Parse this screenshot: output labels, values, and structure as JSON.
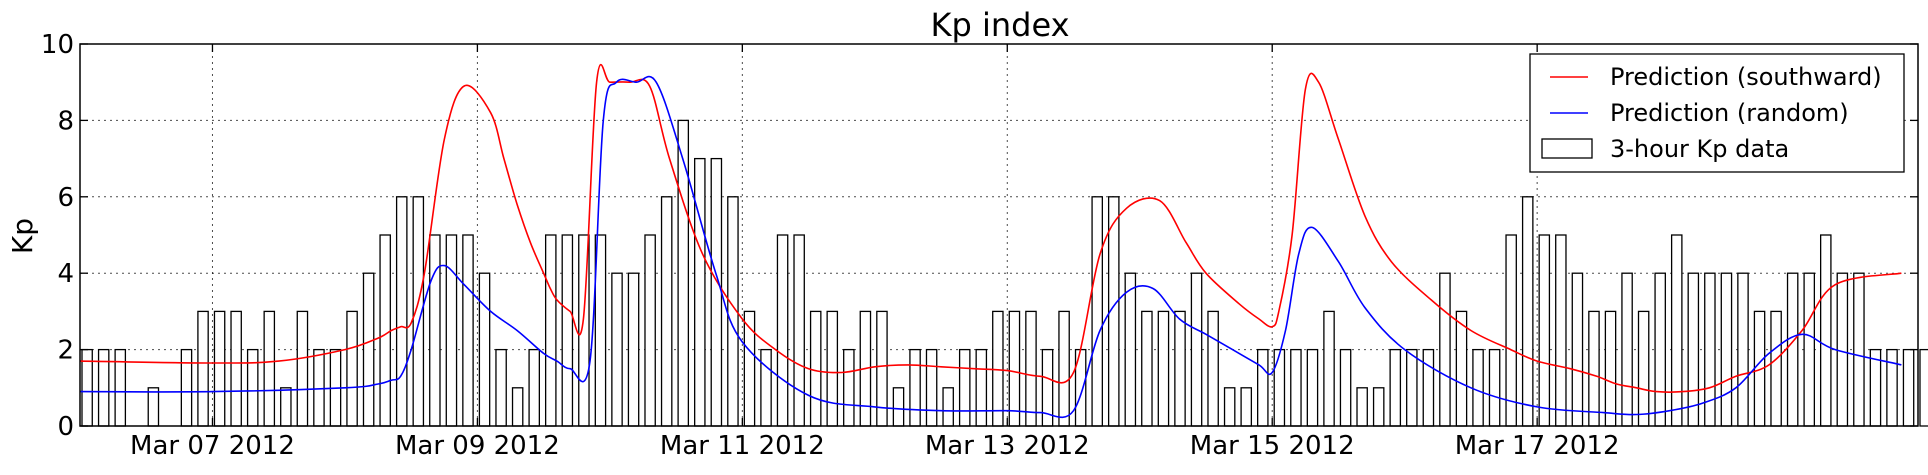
{
  "chart_data": {
    "type": "bar",
    "title": "Kp index",
    "xlabel": "",
    "ylabel": "Kp",
    "ylim": [
      0,
      10
    ],
    "yticks": [
      "0",
      "2",
      "4",
      "6",
      "8",
      "10"
    ],
    "x_range_days": [
      "Mar 06 2012 00:00",
      "Mar 18 2012 21:00"
    ],
    "xtick_labels": [
      "Mar 07 2012",
      "Mar 09 2012",
      "Mar 11 2012",
      "Mar 13 2012",
      "Mar 15 2012",
      "Mar 17 2012"
    ],
    "xtick_dates": [
      "2012-03-07",
      "2012-03-09",
      "2012-03-11",
      "2012-03-13",
      "2012-03-15",
      "2012-03-17"
    ],
    "grid": true,
    "legend_position": "top-right",
    "legend": [
      {
        "label": "Prediction (southward)",
        "kind": "line",
        "color": "#ff0000"
      },
      {
        "label": "Prediction (random)",
        "kind": "line",
        "color": "#0000ff"
      },
      {
        "label": "3-hour Kp data",
        "kind": "bar",
        "color": "#000000"
      }
    ],
    "bars": {
      "name": "3-hour Kp data",
      "interval_hours": 3,
      "start": "2012-03-06 00:00",
      "values": [
        2,
        2,
        2,
        0,
        1,
        0,
        2,
        3,
        3,
        3,
        2,
        3,
        1,
        3,
        2,
        2,
        3,
        4,
        5,
        6,
        6,
        5,
        5,
        5,
        4,
        2,
        1,
        2,
        5,
        5,
        5,
        5,
        4,
        4,
        5,
        6,
        8,
        7,
        7,
        6,
        3,
        2,
        5,
        5,
        3,
        3,
        2,
        3,
        3,
        1,
        2,
        2,
        1,
        2,
        2,
        3,
        3,
        3,
        2,
        3,
        2,
        6,
        6,
        4,
        3,
        3,
        3,
        4,
        3,
        1,
        1,
        2,
        2,
        2,
        2,
        3,
        2,
        1,
        1,
        2,
        2,
        2,
        4,
        3,
        2,
        2,
        5,
        6,
        5,
        5,
        4,
        3,
        3,
        4,
        3,
        4,
        5,
        4,
        4,
        4,
        4,
        3,
        3,
        4,
        4,
        5,
        4,
        4,
        2,
        2,
        2,
        2,
        2,
        2
      ]
    },
    "series": [
      {
        "name": "Prediction (southward)",
        "color": "#ff0000",
        "x_days": [
          0,
          1,
          1.5,
          2,
          2.25,
          2.35,
          2.42,
          2.5,
          2.6,
          2.75,
          2.9,
          3.1,
          3.2,
          3.3,
          3.4,
          3.5,
          3.55,
          3.6,
          3.7,
          3.8,
          3.9,
          4.0,
          4.15,
          4.3,
          4.45,
          4.7,
          5.0,
          5.25,
          5.5,
          5.75,
          6.0,
          6.25,
          6.5,
          6.75,
          7.0,
          7.25,
          7.5,
          7.7,
          7.9,
          8.15,
          8.35,
          8.5,
          8.75,
          8.9,
          9.0,
          9.05,
          9.15,
          9.25,
          9.35,
          9.5,
          9.7,
          9.9,
          10.2,
          10.5,
          10.8,
          11.0,
          11.25,
          11.45,
          11.6,
          11.75,
          11.9,
          12.1,
          12.3,
          12.5,
          12.75,
          13.0,
          13.25,
          13.75
        ],
        "values": [
          1.7,
          1.65,
          1.7,
          2.0,
          2.3,
          2.5,
          2.6,
          2.7,
          4.0,
          7.5,
          8.9,
          8.2,
          7.0,
          5.8,
          4.8,
          4.0,
          3.6,
          3.3,
          3.0,
          2.8,
          9.0,
          9.0,
          9.0,
          8.9,
          7.0,
          4.5,
          2.8,
          2.0,
          1.5,
          1.4,
          1.55,
          1.6,
          1.55,
          1.5,
          1.45,
          1.3,
          1.4,
          4.5,
          5.7,
          5.9,
          4.8,
          4.0,
          3.2,
          2.8,
          2.6,
          3.0,
          5.0,
          8.8,
          9.0,
          7.5,
          5.5,
          4.3,
          3.3,
          2.5,
          2.0,
          1.7,
          1.5,
          1.3,
          1.1,
          1.0,
          0.9,
          0.9,
          1.0,
          1.3,
          1.6,
          2.5,
          3.7,
          4.0
        ]
      },
      {
        "name": "Prediction (random)",
        "color": "#0000ff",
        "x_days": [
          0,
          1,
          2,
          2.25,
          2.35,
          2.42,
          2.5,
          2.65,
          2.75,
          2.9,
          3.1,
          3.3,
          3.5,
          3.6,
          3.7,
          3.85,
          3.95,
          4.05,
          4.2,
          4.35,
          4.55,
          4.8,
          5.0,
          5.5,
          6.0,
          6.5,
          7.0,
          7.25,
          7.5,
          7.7,
          7.9,
          8.1,
          8.3,
          8.5,
          8.7,
          8.9,
          9.0,
          9.1,
          9.2,
          9.3,
          9.5,
          9.7,
          10.0,
          10.5,
          11.0,
          11.5,
          11.75,
          12.0,
          12.25,
          12.5,
          12.75,
          13.0,
          13.25,
          13.75
        ],
        "values": [
          0.9,
          0.9,
          1.0,
          1.1,
          1.2,
          1.3,
          2.0,
          3.8,
          4.2,
          3.7,
          3.0,
          2.5,
          1.9,
          1.7,
          1.5,
          1.7,
          8.0,
          9.0,
          9.0,
          9.0,
          7.0,
          4.0,
          2.2,
          0.8,
          0.5,
          0.4,
          0.4,
          0.35,
          0.4,
          2.5,
          3.5,
          3.6,
          2.8,
          2.4,
          2.0,
          1.6,
          1.4,
          2.5,
          4.5,
          5.2,
          4.3,
          3.1,
          2.0,
          1.0,
          0.5,
          0.35,
          0.3,
          0.4,
          0.6,
          1.0,
          1.9,
          2.4,
          2.0,
          1.6
        ]
      }
    ]
  }
}
